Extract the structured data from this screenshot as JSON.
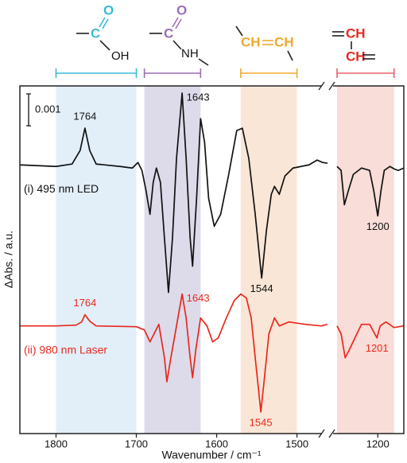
{
  "chart_data": {
    "type": "line",
    "x_label": "Wavenumber / cm⁻¹",
    "y_label": "ΔAbs. / a.u.",
    "xlim": [
      1845,
      1168
    ],
    "xbreak": [
      1462,
      1250
    ],
    "xticks": [
      1800,
      1700,
      1600,
      1500,
      1200
    ],
    "ylim": [
      0,
      0.0109
    ],
    "scale_bar": 0.001,
    "bands": [
      {
        "range": [
          1800,
          1700
        ],
        "color": "#e2eff9",
        "edge": "#3bbbd8"
      },
      {
        "range": [
          1690,
          1620
        ],
        "color": "#dddbea",
        "edge": "#9b6fb7"
      },
      {
        "range": [
          1570,
          1500
        ],
        "color": "#fae6d6",
        "edge": "#f0a830"
      },
      {
        "range": [
          1250,
          1180
        ],
        "color": "#f8ddd8",
        "edge": "#e8606e"
      }
    ],
    "structures": [
      {
        "atoms": [
          "C",
          "O",
          "OH"
        ]
      },
      {
        "atoms": [
          "C",
          "O",
          "NH"
        ]
      },
      {
        "atoms": [
          "CH",
          "CH"
        ]
      },
      {
        "atoms": [
          "CH",
          "CH"
        ]
      }
    ],
    "series": [
      {
        "name": "(i) 495 nm LED",
        "color": "#111111",
        "x": [
          1845,
          1800,
          1780,
          1770,
          1764,
          1758,
          1750,
          1720,
          1705,
          1698,
          1693,
          1688,
          1683,
          1679,
          1675,
          1670,
          1665,
          1660,
          1655,
          1650,
          1643,
          1638,
          1633,
          1630,
          1625,
          1620,
          1615,
          1610,
          1603,
          1595,
          1585,
          1575,
          1568,
          1560,
          1552,
          1544,
          1538,
          1532,
          1528,
          1522,
          1515,
          1505,
          1495,
          1485,
          1475,
          1468,
          1462,
          1350,
          1250,
          1245,
          1241,
          1236,
          1230,
          1220,
          1210,
          1205,
          1200,
          1196,
          1192,
          1185,
          1180,
          1175,
          1168
        ],
        "values": [
          0.008425,
          0.008375,
          0.00845,
          0.008875,
          0.009575,
          0.008875,
          0.00845,
          0.008375,
          0.008325,
          0.0085,
          0.00825,
          0.007625,
          0.006875,
          0.007875,
          0.008325,
          0.007875,
          0.006125,
          0.004425,
          0.006125,
          0.008625,
          0.010675,
          0.008625,
          0.006125,
          0.00525,
          0.007375,
          0.009875,
          0.009125,
          0.007375,
          0.0065,
          0.006875,
          0.008125,
          0.0095,
          0.009575,
          0.008625,
          0.006875,
          0.004875,
          0.006375,
          0.0075,
          0.00775,
          0.0075,
          0.008075,
          0.008325,
          0.008375,
          0.008425,
          0.008575,
          0.0085,
          0.008475,
          null,
          0.008375,
          0.00825,
          0.007175,
          0.007625,
          0.008125,
          0.008325,
          0.00825,
          0.007625,
          0.006825,
          0.007625,
          0.00825,
          0.008375,
          0.0083,
          0.00825,
          0.008325
        ],
        "peaks": [
          1764,
          1643,
          1544,
          1200
        ]
      },
      {
        "name": "(ii) 980 nm Laser",
        "color": "#e8281e",
        "x": [
          1845,
          1800,
          1775,
          1768,
          1764,
          1758,
          1750,
          1700,
          1690,
          1683,
          1678,
          1672,
          1665,
          1662,
          1657,
          1650,
          1643,
          1638,
          1633,
          1630,
          1626,
          1620,
          1612,
          1605,
          1598,
          1588,
          1578,
          1570,
          1563,
          1557,
          1552,
          1545,
          1540,
          1535,
          1528,
          1522,
          1510,
          1490,
          1470,
          1462,
          1350,
          1250,
          1245,
          1240,
          1235,
          1228,
          1220,
          1210,
          1201,
          1197,
          1190,
          1180,
          1168
        ],
        "values": [
          0.003375,
          0.003375,
          0.0034,
          0.0035,
          0.003725,
          0.003525,
          0.003375,
          0.00335,
          0.00325,
          0.002875,
          0.003125,
          0.003425,
          0.002375,
          0.001625,
          0.002375,
          0.003375,
          0.004375,
          0.003625,
          0.002375,
          0.00175,
          0.002625,
          0.003625,
          0.003375,
          0.002875,
          0.003,
          0.003625,
          0.004175,
          0.004375,
          0.00425,
          0.003625,
          0.002375,
          0.000675,
          0.001875,
          0.003125,
          0.003625,
          0.003375,
          0.0035,
          0.003425,
          0.003375,
          0.003425,
          null,
          0.003375,
          0.003125,
          0.002375,
          0.002625,
          0.003,
          0.003425,
          0.003425,
          0.003,
          0.003375,
          0.0035,
          0.003325,
          0.003375
        ],
        "peaks": [
          1764,
          1643,
          1545,
          1201
        ]
      }
    ]
  }
}
